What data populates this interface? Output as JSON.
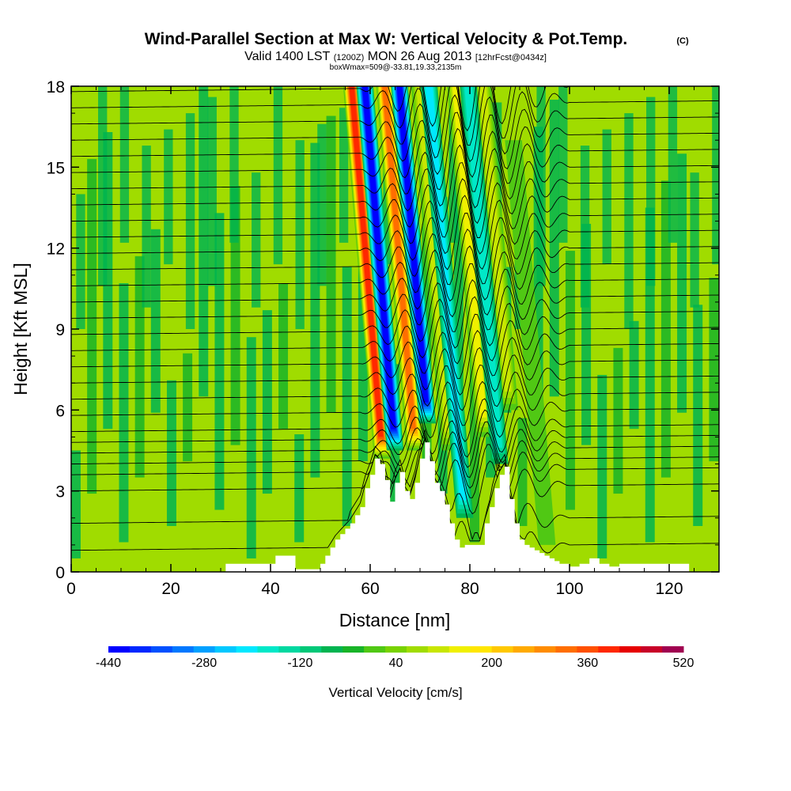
{
  "title": {
    "main": "Wind-Parallel Section at Max W: Vertical Velocity & Pot.Temp.",
    "copyright": "(C)",
    "valid_a": "Valid 1400 LST",
    "valid_b": "(1200Z)",
    "valid_c": "MON 26 Aug 2013",
    "valid_d": "[12hrFcst@0434z]",
    "box_info": "boxWmax=509@-33.81,19.33,2135m"
  },
  "chart_data": {
    "type": "heatmap",
    "xlabel": "Distance [nm]",
    "ylabel": "Height [Kft MSL]",
    "xlim": [
      0,
      130
    ],
    "ylim": [
      0,
      18
    ],
    "x_ticks": [
      0,
      20,
      40,
      60,
      80,
      100,
      120
    ],
    "y_ticks": [
      0,
      3,
      6,
      9,
      12,
      15,
      18
    ],
    "x_tick_labels": [
      "0",
      "20",
      "40",
      "60",
      "80",
      "100",
      "120"
    ],
    "y_tick_labels": [
      "0",
      "3",
      "6",
      "9",
      "12",
      "15",
      "18"
    ],
    "colorbar": {
      "label": "Vertical Velocity [cm/s]",
      "min": -440,
      "max": 520,
      "interval": 40,
      "tick_values": [
        -440,
        -280,
        -120,
        40,
        200,
        360,
        520
      ],
      "tick_labels": [
        "-440",
        "-280",
        "-120",
        "40",
        "200",
        "360",
        "520"
      ],
      "colors": [
        "#0000ff",
        "#0028ff",
        "#0050ff",
        "#0078ff",
        "#00a0ff",
        "#00c8ff",
        "#00e8ff",
        "#00e8c8",
        "#00d8a0",
        "#00c878",
        "#00b450",
        "#18b428",
        "#50c814",
        "#78d200",
        "#a0dc00",
        "#c8e600",
        "#f0f000",
        "#ffe600",
        "#ffc800",
        "#ffaa00",
        "#ff8c00",
        "#ff6e00",
        "#ff5000",
        "#ff2800",
        "#e60000",
        "#c80028",
        "#a00050"
      ]
    },
    "terrain_profile": {
      "description": "Terrain height (Kft) vs distance (nm)",
      "x": [
        0,
        29,
        31,
        40,
        41,
        43,
        45,
        50,
        51,
        52,
        53,
        54,
        55,
        56,
        57,
        58,
        59,
        60,
        61,
        62,
        63,
        64,
        65,
        66,
        67,
        68,
        69,
        70,
        71,
        72,
        73,
        74,
        75,
        76,
        77,
        78,
        79,
        80,
        81,
        82,
        83,
        84,
        85,
        86,
        87,
        88,
        89,
        90,
        91,
        92,
        93,
        94,
        95,
        96,
        97,
        98,
        100,
        102,
        104,
        106,
        108,
        110,
        120,
        124,
        130
      ],
      "y": [
        0.0,
        0.0,
        0.3,
        0.3,
        0.6,
        0.6,
        0.1,
        0.3,
        0.6,
        0.9,
        1.2,
        1.4,
        1.6,
        1.8,
        2.1,
        2.4,
        3.1,
        3.6,
        4.2,
        4.0,
        3.4,
        2.6,
        3.3,
        3.7,
        3.0,
        2.7,
        3.3,
        4.2,
        4.8,
        4.1,
        3.3,
        3.0,
        2.5,
        1.8,
        1.2,
        0.9,
        1.0,
        1.0,
        1.0,
        1.0,
        1.8,
        2.4,
        3.1,
        3.6,
        3.9,
        2.7,
        1.8,
        1.2,
        1.0,
        0.9,
        0.8,
        0.7,
        0.6,
        0.5,
        0.4,
        0.3,
        0.2,
        0.3,
        0.5,
        0.3,
        0.2,
        0.3,
        0.3,
        0.0,
        0.0
      ]
    },
    "vertical_velocity_background_cm_s": 20,
    "updraft_bands": [
      {
        "x_nm": 62.5,
        "wmax_cm_s": 509,
        "z_top_kft": 18,
        "z_bottom_kft": 4.2
      },
      {
        "x_nm": 69.0,
        "wmax_cm_s": 420,
        "z_top_kft": 18,
        "z_bottom_kft": 4.5
      },
      {
        "x_nm": 76.0,
        "wmax_cm_s": 180,
        "z_top_kft": 18,
        "z_bottom_kft": 4.5
      },
      {
        "x_nm": 83.0,
        "wmax_cm_s": 220,
        "z_top_kft": 18,
        "z_bottom_kft": 5.0
      },
      {
        "x_nm": 88.0,
        "wmax_cm_s": 180,
        "z_top_kft": 18,
        "z_bottom_kft": 6.0
      },
      {
        "x_nm": 95.5,
        "wmax_cm_s": 80,
        "z_top_kft": 16,
        "z_bottom_kft": 1.0
      }
    ],
    "downdraft_bands": [
      {
        "x_nm": 65.0,
        "wmin_cm_s": -440,
        "z_top_kft": 18,
        "z_bottom_kft": 4.5
      },
      {
        "x_nm": 71.5,
        "wmin_cm_s": -440,
        "z_top_kft": 18,
        "z_bottom_kft": 5.5
      },
      {
        "x_nm": 79.0,
        "wmin_cm_s": -200,
        "z_top_kft": 18,
        "z_bottom_kft": 2.0
      },
      {
        "x_nm": 86.0,
        "wmin_cm_s": -160,
        "z_top_kft": 18,
        "z_bottom_kft": 4.0
      }
    ],
    "potential_temperature_isentropes": {
      "description": "Black isentrope heights (Kft) far upstream; lines undulate over the wave region between 58 and 100 nm",
      "base_heights_kft": [
        0.8,
        1.8,
        3.0,
        3.6,
        4.0,
        4.4,
        4.8,
        5.2,
        5.8,
        6.4,
        7.0,
        7.6,
        8.2,
        8.8,
        9.4,
        10.0,
        10.6,
        11.2,
        11.8,
        12.4,
        13.0,
        13.6,
        14.2,
        14.8,
        15.4,
        16.0,
        16.6,
        17.2,
        17.8
      ]
    }
  }
}
